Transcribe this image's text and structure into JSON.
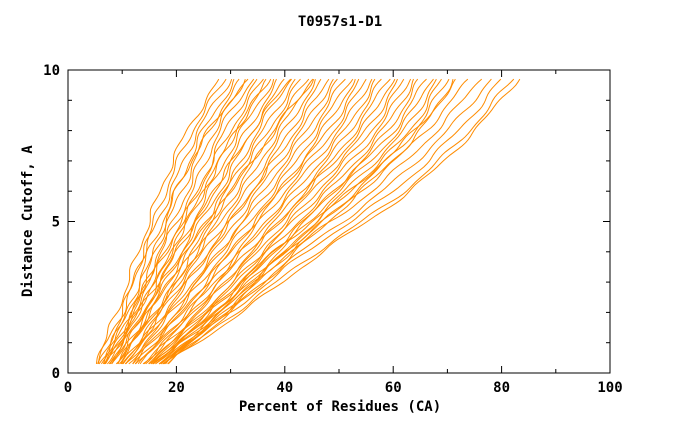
{
  "chart_data": {
    "type": "line",
    "title": "T0957s1-D1",
    "xlabel": "Percent of Residues (CA)",
    "ylabel": "Distance Cutoff, A",
    "xlim": [
      0,
      100
    ],
    "ylim": [
      0,
      10
    ],
    "xticks": [
      0,
      20,
      40,
      60,
      80,
      100
    ],
    "yticks": [
      0,
      5,
      10
    ],
    "minor_x_step": 10,
    "minor_y_step": 1,
    "grid": false,
    "legend": "none",
    "line_color": "#ff8c00",
    "axis_color": "#000000",
    "background_color": "#ffffff",
    "series_description": "Each curve is one predicted model: percent of CA residues (x) under a given distance cutoff in Angstroms (y). Curves estimated at y anchors.",
    "y_anchors": [
      0.3,
      2,
      4,
      6,
      8,
      9.7
    ],
    "curves": [
      [
        5,
        9,
        13,
        17,
        22,
        28
      ],
      [
        5,
        10,
        14,
        18,
        23,
        29
      ],
      [
        6,
        10,
        14,
        19,
        24,
        30
      ],
      [
        6,
        11,
        15,
        20,
        25,
        31
      ],
      [
        6,
        11,
        16,
        21,
        26,
        32
      ],
      [
        7,
        12,
        17,
        22,
        27,
        33
      ],
      [
        7,
        12,
        17,
        23,
        28,
        34
      ],
      [
        7,
        13,
        18,
        24,
        29,
        35
      ],
      [
        6,
        12,
        18,
        24,
        30,
        36
      ],
      [
        7,
        13,
        19,
        25,
        31,
        37
      ],
      [
        7,
        13,
        20,
        26,
        32,
        38
      ],
      [
        8,
        14,
        20,
        27,
        33,
        39
      ],
      [
        8,
        14,
        21,
        28,
        34,
        40
      ],
      [
        8,
        15,
        22,
        29,
        35,
        41
      ],
      [
        9,
        15,
        22,
        29,
        36,
        42
      ],
      [
        9,
        16,
        23,
        30,
        37,
        43
      ],
      [
        9,
        16,
        24,
        31,
        38,
        44
      ],
      [
        10,
        17,
        24,
        32,
        39,
        45
      ],
      [
        10,
        17,
        25,
        33,
        40,
        46
      ],
      [
        10,
        18,
        26,
        34,
        41,
        47
      ],
      [
        11,
        18,
        26,
        34,
        42,
        48
      ],
      [
        11,
        19,
        27,
        35,
        43,
        49
      ],
      [
        11,
        19,
        28,
        36,
        44,
        50
      ],
      [
        12,
        20,
        28,
        37,
        45,
        51
      ],
      [
        12,
        20,
        29,
        38,
        46,
        52
      ],
      [
        12,
        21,
        30,
        39,
        47,
        53
      ],
      [
        13,
        21,
        30,
        39,
        48,
        54
      ],
      [
        13,
        22,
        31,
        40,
        49,
        55
      ],
      [
        13,
        22,
        32,
        41,
        50,
        56
      ],
      [
        14,
        23,
        32,
        42,
        51,
        57
      ],
      [
        14,
        23,
        33,
        43,
        52,
        58
      ],
      [
        14,
        24,
        34,
        44,
        53,
        59
      ],
      [
        15,
        24,
        34,
        44,
        54,
        60
      ],
      [
        15,
        25,
        35,
        45,
        55,
        61
      ],
      [
        15,
        25,
        36,
        46,
        56,
        62
      ],
      [
        16,
        26,
        36,
        47,
        57,
        63
      ],
      [
        16,
        26,
        37,
        48,
        58,
        64
      ],
      [
        16,
        27,
        38,
        49,
        59,
        65
      ],
      [
        17,
        27,
        38,
        49,
        60,
        66
      ],
      [
        17,
        28,
        39,
        50,
        61,
        67
      ],
      [
        17,
        28,
        40,
        51,
        62,
        68
      ],
      [
        18,
        29,
        40,
        52,
        63,
        69
      ],
      [
        18,
        29,
        41,
        53,
        64,
        70
      ],
      [
        18,
        30,
        42,
        54,
        65,
        71
      ],
      [
        15,
        26,
        38,
        52,
        64,
        72
      ],
      [
        16,
        27,
        40,
        54,
        66,
        74
      ],
      [
        16,
        28,
        41,
        56,
        68,
        76
      ],
      [
        17,
        29,
        43,
        58,
        70,
        78
      ],
      [
        17,
        30,
        44,
        60,
        72,
        80
      ],
      [
        18,
        31,
        46,
        62,
        74,
        82
      ],
      [
        18,
        32,
        47,
        63,
        75,
        83
      ],
      [
        8,
        12,
        16,
        20,
        26,
        33
      ],
      [
        9,
        14,
        19,
        25,
        31,
        37
      ],
      [
        10,
        15,
        21,
        27,
        34,
        41
      ],
      [
        11,
        17,
        23,
        30,
        38,
        45
      ]
    ]
  }
}
